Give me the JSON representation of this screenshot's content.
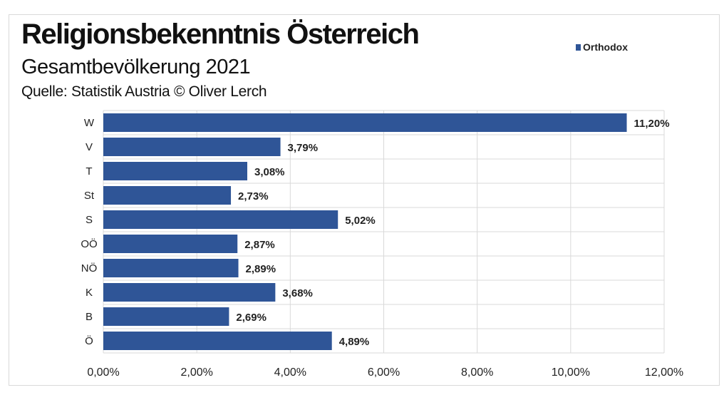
{
  "chart_data": {
    "type": "bar",
    "orientation": "horizontal",
    "title": "Religionsbekenntnis Österreich",
    "subtitle": "Gesamtbevölkerung  2021",
    "source": "Quelle: Statistik Austria © Oliver Lerch",
    "categories": [
      "W",
      "V",
      "T",
      "St",
      "S",
      "OÖ",
      "NÖ",
      "K",
      "B",
      "Ö"
    ],
    "series": [
      {
        "name": "Orthodox",
        "values": [
          11.2,
          3.79,
          3.08,
          2.73,
          5.02,
          2.87,
          2.89,
          3.68,
          2.69,
          4.89
        ],
        "color": "#2f5597"
      }
    ],
    "data_labels": [
      "11,20%",
      "3,79%",
      "3,08%",
      "2,73%",
      "5,02%",
      "2,87%",
      "2,89%",
      "3,68%",
      "2,69%",
      "4,89%"
    ],
    "xlim": [
      0,
      12
    ],
    "x_ticks": [
      0,
      2,
      4,
      6,
      8,
      10,
      12
    ],
    "x_tick_labels": [
      "0,00%",
      "2,00%",
      "4,00%",
      "6,00%",
      "8,00%",
      "10,00%",
      "12,00%"
    ],
    "grid": true,
    "legend_position": "top-right"
  }
}
